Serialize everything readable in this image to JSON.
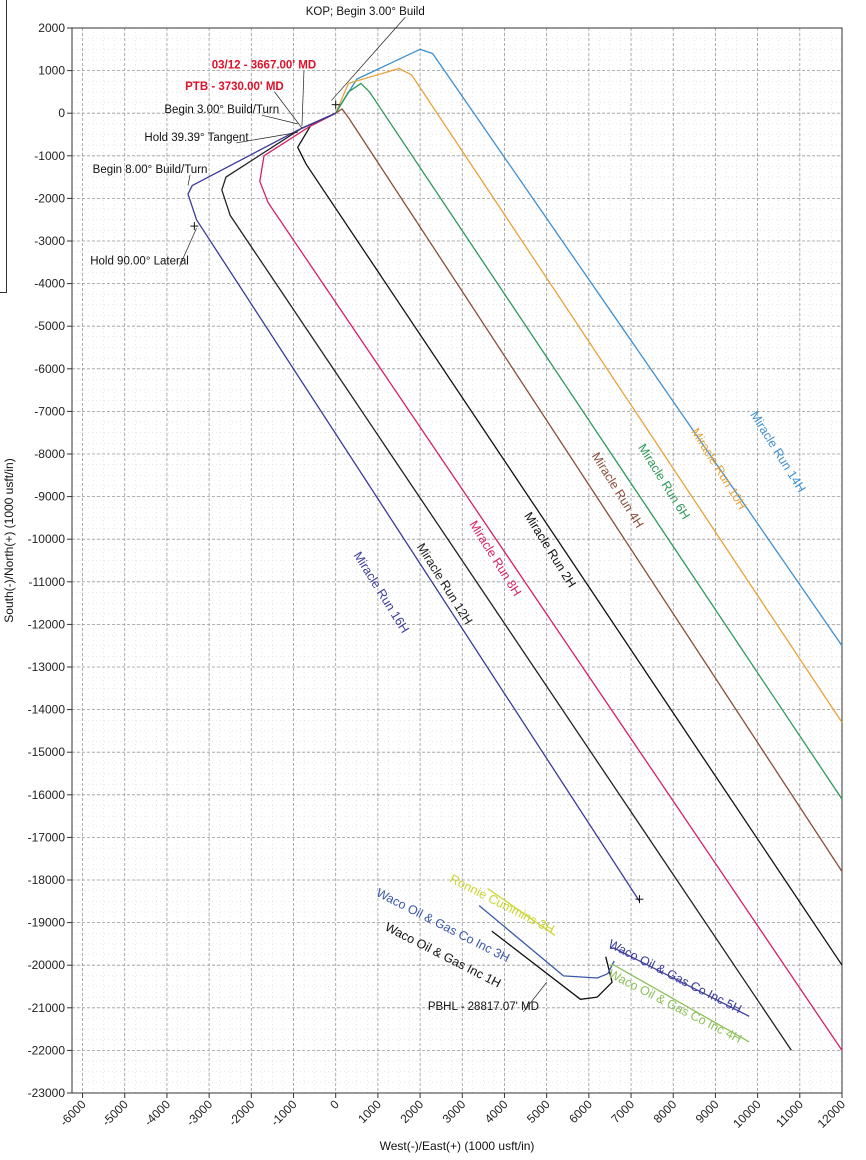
{
  "chart_data": {
    "type": "line",
    "title": "",
    "xlabel": "West(-)/East(+) (1000 usft/in)",
    "ylabel": "South(-)/North(+) (1000 usft/in)",
    "xlim": [
      -6250,
      12000
    ],
    "ylim": [
      -23000,
      2000
    ],
    "x_ticks": [
      -6000,
      -5000,
      -4000,
      -3000,
      -2000,
      -1000,
      0,
      1000,
      2000,
      3000,
      4000,
      5000,
      6000,
      7000,
      8000,
      9000,
      10000,
      11000,
      12000
    ],
    "y_ticks": [
      2000,
      1000,
      0,
      -1000,
      -2000,
      -3000,
      -4000,
      -5000,
      -6000,
      -7000,
      -8000,
      -9000,
      -10000,
      -11000,
      -12000,
      -13000,
      -14000,
      -15000,
      -16000,
      -17000,
      -18000,
      -19000,
      -20000,
      -21000,
      -22000,
      -23000
    ],
    "grid": true,
    "series": [
      {
        "name": "Miracle Run 14H",
        "color": "#3d8fcf",
        "x": [
          0,
          500,
          2000,
          2300,
          12000
        ],
        "y": [
          0,
          800,
          1500,
          1400,
          -12500
        ]
      },
      {
        "name": "Miracle Run 10H",
        "color": "#e8a23a",
        "x": [
          0,
          300,
          1500,
          1800,
          12000
        ],
        "y": [
          0,
          700,
          1050,
          900,
          -14300
        ]
      },
      {
        "name": "Miracle Run 6H",
        "color": "#2e9a58",
        "x": [
          0,
          300,
          600,
          800,
          12000
        ],
        "y": [
          0,
          500,
          700,
          500,
          -16100
        ]
      },
      {
        "name": "Miracle Run 4H",
        "color": "#8a4e3a",
        "x": [
          0,
          150,
          300,
          12000
        ],
        "y": [
          0,
          100,
          -100,
          -17800
        ]
      },
      {
        "name": "Miracle Run 2H",
        "color": "#111111",
        "x": [
          0,
          -600,
          -900,
          -700,
          12000
        ],
        "y": [
          0,
          -300,
          -800,
          -1200,
          -20000
        ]
      },
      {
        "name": "Miracle Run 8H",
        "color": "#d6206a",
        "x": [
          0,
          -600,
          -1700,
          -1800,
          -1600,
          12000
        ],
        "y": [
          0,
          -300,
          -1000,
          -1600,
          -2100,
          -22000
        ]
      },
      {
        "name": "Miracle Run 12H",
        "color": "#222222",
        "x": [
          0,
          -800,
          -2600,
          -2700,
          -2500,
          10800
        ],
        "y": [
          0,
          -350,
          -1500,
          -1800,
          -2400,
          -22000
        ]
      },
      {
        "name": "Miracle Run 16H",
        "color": "#3b3b99",
        "x": [
          0,
          -900,
          -3400,
          -3500,
          -3300,
          7200
        ],
        "y": [
          0,
          -400,
          -1700,
          -1900,
          -2500,
          -18500
        ]
      },
      {
        "name": "Waco Oil & Gas Inc 1H",
        "color": "#111111",
        "x": [
          6400,
          6550,
          6200,
          5800,
          3700
        ],
        "y": [
          -19800,
          -20400,
          -20750,
          -20800,
          -19200
        ]
      },
      {
        "name": "Waco Oil & Gas Co Inc 3H",
        "color": "#3b59a8",
        "x": [
          6600,
          6450,
          6200,
          5400,
          3400
        ],
        "y": [
          -19900,
          -20200,
          -20300,
          -20250,
          -18600
        ]
      },
      {
        "name": "Waco Oil & Gas Co Inc 5H",
        "color": "#3b3b99",
        "x": [
          6500,
          6600,
          9800
        ],
        "y": [
          -19600,
          -19600,
          -21200
        ]
      },
      {
        "name": "Waco Oil & Gas Co Inc 4H",
        "color": "#8dc15a",
        "x": [
          6500,
          6600,
          9800
        ],
        "y": [
          -20000,
          -20000,
          -21800
        ]
      },
      {
        "name": "Ronnie Cummins 3H",
        "color": "#c9d430",
        "x": [
          3600,
          5200
        ],
        "y": [
          -18200,
          -19300
        ]
      }
    ],
    "series_labels": [
      {
        "text": "Miracle Run 14H",
        "color": "#3d8fcf",
        "x": 10400,
        "y": -8000,
        "angle": 58
      },
      {
        "text": "Miracle Run 10H",
        "color": "#e8a23a",
        "x": 9000,
        "y": -8400,
        "angle": 58
      },
      {
        "text": "Miracle Run 6H",
        "color": "#2e9a58",
        "x": 7700,
        "y": -8700,
        "angle": 58
      },
      {
        "text": "Miracle Run 4H",
        "color": "#8a4e3a",
        "x": 6600,
        "y": -8900,
        "angle": 58
      },
      {
        "text": "Miracle Run 2H",
        "color": "#111111",
        "x": 5000,
        "y": -10300,
        "angle": 58
      },
      {
        "text": "Miracle Run 8H",
        "color": "#d6206a",
        "x": 3700,
        "y": -10500,
        "angle": 58
      },
      {
        "text": "Miracle Run 12H",
        "color": "#222222",
        "x": 2500,
        "y": -11100,
        "angle": 58
      },
      {
        "text": "Miracle Run 16H",
        "color": "#3b3b99",
        "x": 1000,
        "y": -11300,
        "angle": 58
      },
      {
        "text": "Waco Oil & Gas Co Inc 3H",
        "color": "#3b59a8",
        "x": 2500,
        "y": -19150,
        "angle": 27
      },
      {
        "text": "Ronnie Cummins 3H",
        "color": "#c9d430",
        "x": 3900,
        "y": -18650,
        "angle": 27
      },
      {
        "text": "Waco Oil & Gas Inc 1H",
        "color": "#111111",
        "x": 2500,
        "y": -19850,
        "angle": 27
      },
      {
        "text": "Waco Oil & Gas Co Inc 5H",
        "color": "#3b3b99",
        "x": 8000,
        "y": -20350,
        "angle": 27
      },
      {
        "text": "Waco Oil & Gas Co Inc 4H",
        "color": "#8dc15a",
        "x": 8000,
        "y": -21050,
        "angle": 27
      }
    ],
    "annotations": [
      {
        "text": "KOP; Begin 3.00° Build",
        "color": "#111111",
        "bold": false,
        "x": 700,
        "y": 2300,
        "px": -100,
        "py": 300
      },
      {
        "text": "03/12 - 3667.00' MD",
        "color": "#e0102a",
        "bold": true,
        "x": -1700,
        "y": 1050,
        "px": -800,
        "py": -300
      },
      {
        "text": "PTB - 3730.00' MD",
        "color": "#e0102a",
        "bold": true,
        "x": -2400,
        "y": 550,
        "px": -800,
        "py": -350
      },
      {
        "text": "Begin 3.00° Build/Turn",
        "color": "#111111",
        "bold": false,
        "x": -2700,
        "y": 0,
        "px": -900,
        "py": -250
      },
      {
        "text": "Hold 39.39° Tangent",
        "color": "#111111",
        "bold": false,
        "x": -3300,
        "y": -650,
        "px": -900,
        "py": -450
      },
      {
        "text": "Begin 8.00° Build/Turn",
        "color": "#111111",
        "bold": false,
        "x": -4400,
        "y": -1400,
        "px": -3500,
        "py": -1700
      },
      {
        "text": "Hold 90.00° Lateral",
        "color": "#111111",
        "bold": false,
        "x": -4650,
        "y": -3550,
        "px": -3300,
        "py": -2700
      },
      {
        "text": "PBHL - 28817.07' MD",
        "color": "#111111",
        "bold": false,
        "x": 3500,
        "y": -21050,
        "px": 5000,
        "py": -20400
      }
    ]
  }
}
